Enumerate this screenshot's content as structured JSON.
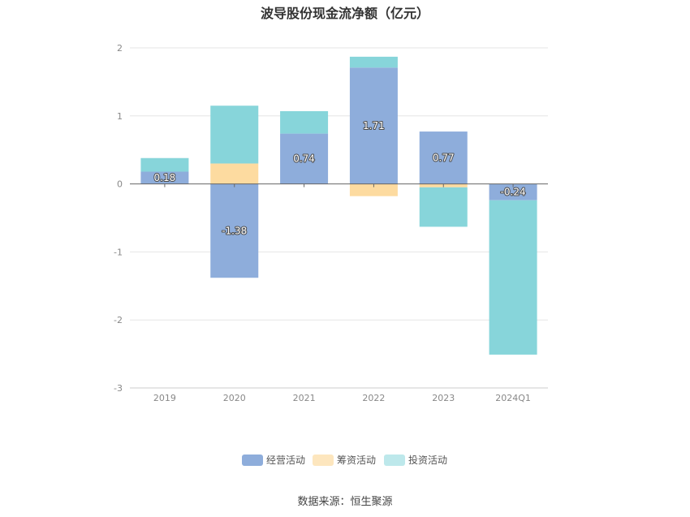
{
  "chart_data": {
    "type": "bar",
    "title": "波导股份现金流净额（亿元）",
    "source": "数据来源：恒生聚源",
    "categories": [
      "2019",
      "2020",
      "2021",
      "2022",
      "2023",
      "2024Q1"
    ],
    "series": [
      {
        "name": "经营活动",
        "color": "#8EADDB",
        "values": [
          0.18,
          -1.38,
          0.74,
          1.71,
          0.77,
          -0.24
        ]
      },
      {
        "name": "筹资活动",
        "color": "#FDDBA0",
        "values": [
          0.0,
          0.3,
          0.0,
          -0.18,
          -0.05,
          0.0
        ]
      },
      {
        "name": "投资活动",
        "color": "#87D5DA",
        "values": [
          0.2,
          0.85,
          0.33,
          0.16,
          -0.58,
          -2.27
        ]
      }
    ],
    "data_labels": [
      "0.18",
      "-1.38",
      "0.74",
      "1.71",
      "0.77",
      "-0.24"
    ],
    "y_ticks": [
      2,
      1,
      0,
      -1,
      -2,
      -3
    ],
    "ylim": [
      -3,
      2
    ],
    "grid": true,
    "legend_position": "bottom"
  }
}
